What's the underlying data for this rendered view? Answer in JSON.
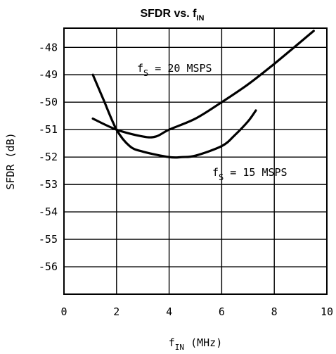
{
  "chart_data": {
    "type": "line",
    "title": {
      "main": "SFDR vs. f",
      "sub": "IN"
    },
    "xlabel": {
      "main": "f",
      "sub": "IN",
      "rest": " (MHz)"
    },
    "ylabel": "SFDR (dB)",
    "xlim": [
      0,
      10
    ],
    "ylim": [
      -57,
      -47.3
    ],
    "xticks": [
      0,
      2,
      4,
      6,
      8,
      10
    ],
    "yticks": [
      -48,
      -49,
      -50,
      -51,
      -52,
      -53,
      -54,
      -55,
      -56
    ],
    "ytick_labels": [
      "-48",
      "-49",
      "-50",
      "-51",
      "-52",
      "-53",
      "-54",
      "-55",
      "-56"
    ],
    "grid": true,
    "series": [
      {
        "name": "f_S = 20 MSPS",
        "label_main": "f",
        "label_sub": "S",
        "label_rest": " = 20 MSPS",
        "x": [
          1.1,
          2.0,
          3.0,
          3.5,
          4.0,
          5.0,
          6.0,
          7.0,
          8.0,
          9.5
        ],
        "y": [
          -50.6,
          -51.0,
          -51.25,
          -51.25,
          -51.0,
          -50.6,
          -50.0,
          -49.35,
          -48.6,
          -47.4
        ]
      },
      {
        "name": "f_S = 15 MSPS",
        "label_main": "f",
        "label_sub": "S",
        "label_rest": " = 15 MSPS",
        "x": [
          1.1,
          1.5,
          2.0,
          2.5,
          3.0,
          4.0,
          4.5,
          5.0,
          6.0,
          6.5,
          7.0,
          7.3
        ],
        "y": [
          -49.0,
          -49.9,
          -51.0,
          -51.6,
          -51.8,
          -52.0,
          -52.0,
          -51.95,
          -51.6,
          -51.2,
          -50.7,
          -50.3
        ]
      }
    ]
  }
}
